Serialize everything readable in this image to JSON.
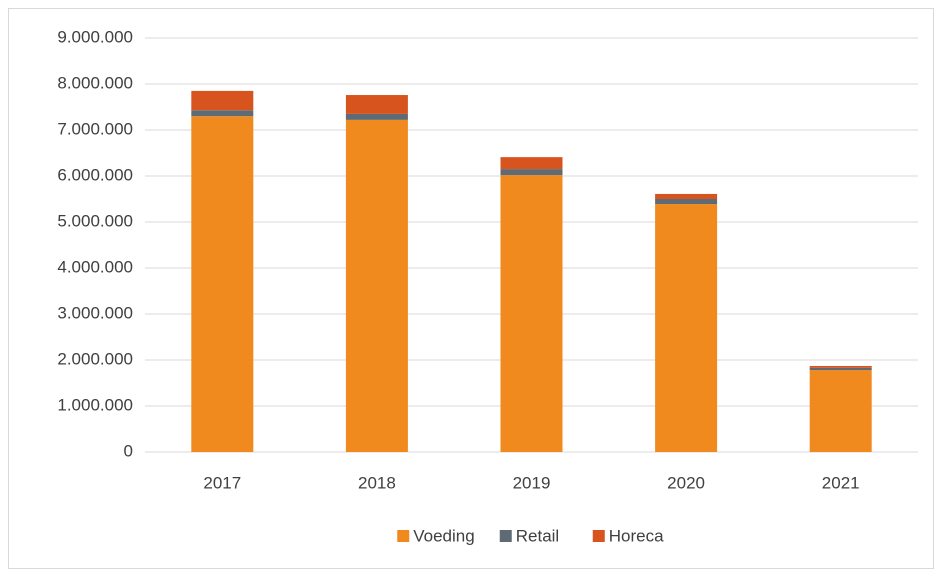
{
  "chart_data": {
    "type": "stacked_bar",
    "categories": [
      "2017",
      "2018",
      "2019",
      "2020",
      "2021"
    ],
    "series": [
      {
        "name": "Voeding",
        "color": "#f08a1e",
        "values": [
          7300000,
          7220000,
          6020000,
          5390000,
          1780000
        ]
      },
      {
        "name": "Retail",
        "color": "#5f6b74",
        "values": [
          130000,
          130000,
          130000,
          110000,
          50000
        ]
      },
      {
        "name": "Horeca",
        "color": "#d8541f",
        "values": [
          420000,
          410000,
          260000,
          110000,
          40000
        ]
      }
    ],
    "ylim": [
      0,
      9000000
    ],
    "yticks": [
      0,
      {
        "value": 1000000,
        "label": "1.000.000"
      },
      {
        "value": 2000000,
        "label": "2.000.000"
      },
      {
        "value": 3000000,
        "label": "3.000.000"
      },
      {
        "value": 4000000,
        "label": "4.000.000"
      },
      {
        "value": 5000000,
        "label": "5.000.000"
      },
      {
        "value": 6000000,
        "label": "6.000.000"
      },
      {
        "value": 7000000,
        "label": "7.000.000"
      },
      {
        "value": 8000000,
        "label": "8.000.000"
      },
      {
        "value": 9000000,
        "label": "9.000.000"
      }
    ],
    "grid": true,
    "legend": "bottom"
  }
}
